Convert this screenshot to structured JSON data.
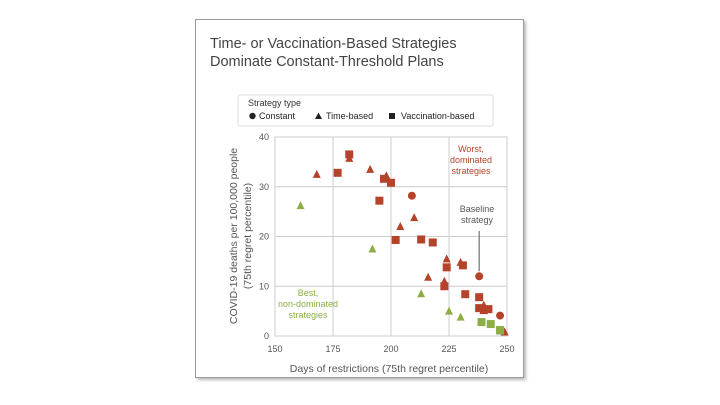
{
  "chart_data": {
    "type": "scatter",
    "title": "Time- or Vaccination-Based Strategies",
    "subtitle": "Dominate Constant-Threshold Plans",
    "xlabel": "Days of restrictions (75th regret percentile)",
    "ylabel": "COVID-19 deaths per 100,000 people",
    "ylabel2": "(75th regret percentile)",
    "xlim": [
      150,
      250
    ],
    "ylim": [
      0,
      40
    ],
    "x_ticks": [
      "150",
      "175",
      "200",
      "225",
      "250"
    ],
    "y_ticks": [
      "0",
      "10",
      "20",
      "30",
      "40"
    ],
    "grid": true,
    "legend": {
      "title": "Strategy type",
      "position": "top",
      "items": [
        {
          "label": "Constant",
          "marker": "circle"
        },
        {
          "label": "Time-based",
          "marker": "triangle"
        },
        {
          "label": "Vaccination-based",
          "marker": "square"
        }
      ]
    },
    "colors": {
      "dominated": "#b5432b",
      "non_dominated": "#8cae45",
      "baseline_line": "#555555"
    },
    "annotations": [
      {
        "lines": [
          "Worst,",
          "dominated",
          "strategies"
        ],
        "color": "#b5432b"
      },
      {
        "lines": [
          "Baseline",
          "strategy"
        ],
        "color": "#555555"
      },
      {
        "lines": [
          "Best,",
          "non-dominated",
          "strategies"
        ],
        "color": "#8cae45"
      }
    ],
    "series": [
      {
        "name": "Constant",
        "marker": "circle",
        "points": [
          {
            "x": 209,
            "y": 28.2,
            "group": "dominated"
          },
          {
            "x": 238,
            "y": 12,
            "group": "dominated"
          },
          {
            "x": 247,
            "y": 4.1,
            "group": "dominated"
          }
        ]
      },
      {
        "name": "Time-based",
        "marker": "triangle",
        "points": [
          {
            "x": 168,
            "y": 32.5,
            "group": "dominated"
          },
          {
            "x": 182,
            "y": 35.7,
            "group": "dominated"
          },
          {
            "x": 191,
            "y": 33.5,
            "group": "dominated"
          },
          {
            "x": 198,
            "y": 32.2,
            "group": "dominated"
          },
          {
            "x": 210,
            "y": 23.8,
            "group": "dominated"
          },
          {
            "x": 204,
            "y": 22.0,
            "group": "dominated"
          },
          {
            "x": 224,
            "y": 15.5,
            "group": "dominated"
          },
          {
            "x": 216,
            "y": 11.8,
            "group": "dominated"
          },
          {
            "x": 223,
            "y": 11.0,
            "group": "dominated"
          },
          {
            "x": 230,
            "y": 14.8,
            "group": "dominated"
          },
          {
            "x": 240,
            "y": 6.2,
            "group": "dominated"
          },
          {
            "x": 249,
            "y": 0.8,
            "group": "dominated"
          },
          {
            "x": 161,
            "y": 26.2,
            "group": "non_dominated"
          },
          {
            "x": 192,
            "y": 17.5,
            "group": "non_dominated"
          },
          {
            "x": 213,
            "y": 8.5,
            "group": "non_dominated"
          },
          {
            "x": 225,
            "y": 5.0,
            "group": "non_dominated"
          },
          {
            "x": 230,
            "y": 3.8,
            "group": "non_dominated"
          },
          {
            "x": 247,
            "y": 1.0,
            "group": "non_dominated"
          }
        ]
      },
      {
        "name": "Vaccination-based",
        "marker": "square",
        "points": [
          {
            "x": 182,
            "y": 36.5,
            "group": "dominated"
          },
          {
            "x": 177,
            "y": 32.8,
            "group": "dominated"
          },
          {
            "x": 197,
            "y": 31.6,
            "group": "dominated"
          },
          {
            "x": 200,
            "y": 30.8,
            "group": "dominated"
          },
          {
            "x": 195,
            "y": 27.2,
            "group": "dominated"
          },
          {
            "x": 202,
            "y": 19.3,
            "group": "dominated"
          },
          {
            "x": 213,
            "y": 19.4,
            "group": "dominated"
          },
          {
            "x": 218,
            "y": 18.8,
            "group": "dominated"
          },
          {
            "x": 224,
            "y": 13.8,
            "group": "dominated"
          },
          {
            "x": 231,
            "y": 14.2,
            "group": "dominated"
          },
          {
            "x": 223,
            "y": 10.0,
            "group": "dominated"
          },
          {
            "x": 232,
            "y": 8.4,
            "group": "dominated"
          },
          {
            "x": 238,
            "y": 7.8,
            "group": "dominated"
          },
          {
            "x": 238,
            "y": 5.6,
            "group": "dominated"
          },
          {
            "x": 240,
            "y": 5.2,
            "group": "dominated"
          },
          {
            "x": 242,
            "y": 5.4,
            "group": "dominated"
          },
          {
            "x": 239,
            "y": 2.8,
            "group": "non_dominated"
          },
          {
            "x": 243,
            "y": 2.4,
            "group": "non_dominated"
          },
          {
            "x": 247,
            "y": 1.2,
            "group": "non_dominated"
          }
        ]
      }
    ]
  }
}
